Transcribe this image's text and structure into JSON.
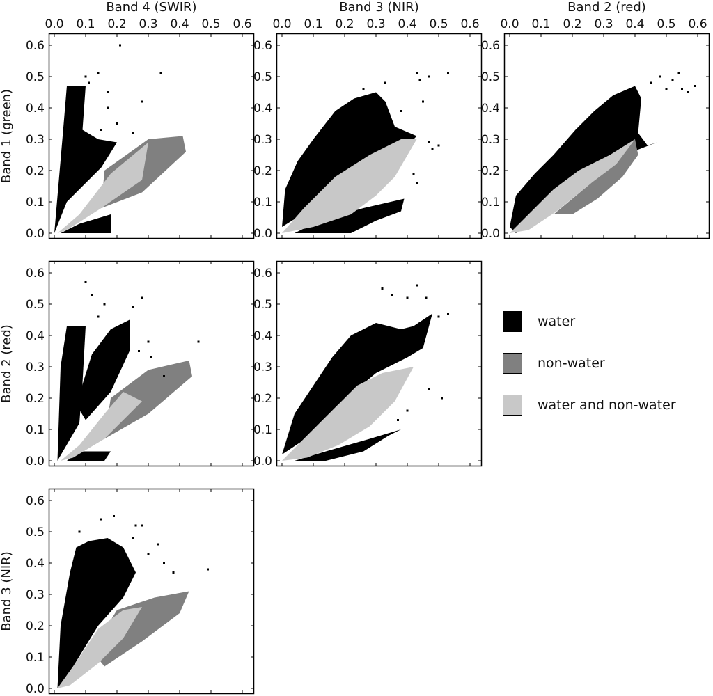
{
  "chart_data": {
    "type": "scatter",
    "description_style": "binned 2D scatter-matrix (density pixels), 3 classes",
    "axis_range": [
      0.0,
      0.62
    ],
    "ticks": [
      0.0,
      0.1,
      0.2,
      0.3,
      0.4,
      0.5,
      0.6
    ],
    "tick_labels": [
      "0.0",
      "0.1",
      "0.2",
      "0.3",
      "0.4",
      "0.5",
      "0.6"
    ],
    "column_titles": [
      "Band 4 (SWIR)",
      "Band 3 (NIR)",
      "Band 2 (red)"
    ],
    "row_titles": [
      "Band 1 (green)",
      "Band 2 (red)",
      "Band 3 (NIR)"
    ],
    "grid": false,
    "legend_position": "right",
    "legend": [
      {
        "name": "water",
        "color": "#000000"
      },
      {
        "name": "non-water",
        "color": "#808080"
      },
      {
        "name": "water and non-water",
        "color": "#c8c8c8"
      }
    ],
    "panels": [
      {
        "row": 0,
        "col": 0,
        "x_band": "Band 4 (SWIR)",
        "y_band": "Band 1 (green)",
        "water": [
          [
            [
              0.0,
              0.0
            ],
            [
              0.03,
              0.35
            ],
            [
              0.04,
              0.47
            ],
            [
              0.1,
              0.47
            ],
            [
              0.09,
              0.33
            ],
            [
              0.14,
              0.3
            ],
            [
              0.2,
              0.29
            ],
            [
              0.15,
              0.21
            ],
            [
              0.04,
              0.1
            ]
          ],
          [
            [
              0.02,
              0.0
            ],
            [
              0.18,
              0.0
            ],
            [
              0.18,
              0.06
            ],
            [
              0.08,
              0.03
            ]
          ]
        ],
        "nonwater": [
          [
            [
              0.16,
              0.2
            ],
            [
              0.3,
              0.3
            ],
            [
              0.41,
              0.31
            ],
            [
              0.42,
              0.26
            ],
            [
              0.28,
              0.13
            ],
            [
              0.15,
              0.08
            ]
          ]
        ],
        "overlap": [
          [
            [
              0.01,
              0.0
            ],
            [
              0.08,
              0.06
            ],
            [
              0.18,
              0.19
            ],
            [
              0.3,
              0.29
            ],
            [
              0.28,
              0.17
            ],
            [
              0.15,
              0.08
            ],
            [
              0.04,
              0.01
            ]
          ]
        ],
        "scatter_points": [
          [
            0.1,
            0.5
          ],
          [
            0.14,
            0.51
          ],
          [
            0.17,
            0.45
          ],
          [
            0.21,
            0.6
          ],
          [
            0.17,
            0.4
          ],
          [
            0.28,
            0.42
          ],
          [
            0.2,
            0.35
          ],
          [
            0.34,
            0.51
          ],
          [
            0.25,
            0.32
          ],
          [
            0.09,
            0.38
          ],
          [
            0.11,
            0.48
          ],
          [
            0.15,
            0.33
          ]
        ]
      },
      {
        "row": 0,
        "col": 1,
        "x_band": "Band 3 (NIR)",
        "y_band": "Band 1 (green)",
        "water": [
          [
            [
              0.0,
              0.02
            ],
            [
              0.01,
              0.14
            ],
            [
              0.05,
              0.23
            ],
            [
              0.1,
              0.3
            ],
            [
              0.17,
              0.39
            ],
            [
              0.23,
              0.43
            ],
            [
              0.3,
              0.45
            ],
            [
              0.33,
              0.42
            ],
            [
              0.36,
              0.34
            ],
            [
              0.43,
              0.31
            ],
            [
              0.4,
              0.28
            ],
            [
              0.33,
              0.23
            ],
            [
              0.2,
              0.18
            ],
            [
              0.08,
              0.07
            ]
          ],
          [
            [
              0.04,
              0.0
            ],
            [
              0.22,
              0.0
            ],
            [
              0.3,
              0.04
            ],
            [
              0.38,
              0.07
            ],
            [
              0.39,
              0.11
            ],
            [
              0.26,
              0.08
            ],
            [
              0.12,
              0.04
            ]
          ]
        ],
        "nonwater": [],
        "overlap": [
          [
            [
              0.0,
              0.0
            ],
            [
              0.07,
              0.08
            ],
            [
              0.17,
              0.18
            ],
            [
              0.28,
              0.25
            ],
            [
              0.38,
              0.3
            ],
            [
              0.43,
              0.3
            ],
            [
              0.36,
              0.18
            ],
            [
              0.3,
              0.12
            ],
            [
              0.22,
              0.06
            ],
            [
              0.1,
              0.02
            ]
          ]
        ],
        "scatter_points": [
          [
            0.43,
            0.51
          ],
          [
            0.44,
            0.49
          ],
          [
            0.47,
            0.5
          ],
          [
            0.53,
            0.51
          ],
          [
            0.47,
            0.29
          ],
          [
            0.5,
            0.28
          ],
          [
            0.42,
            0.19
          ],
          [
            0.38,
            0.39
          ],
          [
            0.33,
            0.48
          ],
          [
            0.45,
            0.42
          ],
          [
            0.26,
            0.46
          ],
          [
            0.43,
            0.16
          ],
          [
            0.48,
            0.27
          ]
        ]
      },
      {
        "row": 0,
        "col": 2,
        "x_band": "Band 2 (red)",
        "y_band": "Band 1 (green)",
        "water": [
          [
            [
              0.0,
              0.02
            ],
            [
              0.02,
              0.12
            ],
            [
              0.08,
              0.19
            ],
            [
              0.14,
              0.25
            ],
            [
              0.21,
              0.33
            ],
            [
              0.27,
              0.39
            ],
            [
              0.33,
              0.44
            ],
            [
              0.4,
              0.47
            ],
            [
              0.42,
              0.43
            ],
            [
              0.41,
              0.32
            ],
            [
              0.44,
              0.28
            ],
            [
              0.47,
              0.29
            ],
            [
              0.34,
              0.24
            ],
            [
              0.22,
              0.17
            ],
            [
              0.1,
              0.08
            ],
            [
              0.02,
              0.0
            ]
          ]
        ],
        "nonwater": [
          [
            [
              0.14,
              0.06
            ],
            [
              0.26,
              0.16
            ],
            [
              0.34,
              0.24
            ],
            [
              0.4,
              0.3
            ],
            [
              0.41,
              0.25
            ],
            [
              0.36,
              0.18
            ],
            [
              0.28,
              0.11
            ],
            [
              0.2,
              0.06
            ]
          ]
        ],
        "overlap": [
          [
            [
              0.0,
              0.0
            ],
            [
              0.06,
              0.06
            ],
            [
              0.14,
              0.14
            ],
            [
              0.22,
              0.2
            ],
            [
              0.32,
              0.25
            ],
            [
              0.4,
              0.3
            ],
            [
              0.34,
              0.22
            ],
            [
              0.26,
              0.16
            ],
            [
              0.15,
              0.07
            ],
            [
              0.06,
              0.01
            ]
          ]
        ],
        "scatter_points": [
          [
            0.48,
            0.5
          ],
          [
            0.52,
            0.49
          ],
          [
            0.55,
            0.46
          ],
          [
            0.57,
            0.45
          ],
          [
            0.5,
            0.46
          ],
          [
            0.54,
            0.51
          ],
          [
            0.45,
            0.48
          ],
          [
            0.59,
            0.47
          ]
        ]
      },
      {
        "row": 1,
        "col": 0,
        "x_band": "Band 4 (SWIR)",
        "y_band": "Band 2 (red)",
        "water": [
          [
            [
              0.01,
              0.0
            ],
            [
              0.02,
              0.3
            ],
            [
              0.04,
              0.43
            ],
            [
              0.1,
              0.43
            ],
            [
              0.09,
              0.25
            ],
            [
              0.08,
              0.12
            ]
          ],
          [
            [
              0.07,
              0.18
            ],
            [
              0.12,
              0.34
            ],
            [
              0.18,
              0.42
            ],
            [
              0.24,
              0.45
            ],
            [
              0.24,
              0.35
            ],
            [
              0.18,
              0.22
            ],
            [
              0.1,
              0.13
            ]
          ],
          [
            [
              0.04,
              0.0
            ],
            [
              0.16,
              0.0
            ],
            [
              0.18,
              0.03
            ],
            [
              0.08,
              0.03
            ]
          ]
        ],
        "nonwater": [
          [
            [
              0.18,
              0.2
            ],
            [
              0.3,
              0.29
            ],
            [
              0.43,
              0.32
            ],
            [
              0.44,
              0.27
            ],
            [
              0.3,
              0.15
            ],
            [
              0.16,
              0.07
            ]
          ]
        ],
        "overlap": [
          [
            [
              0.02,
              0.0
            ],
            [
              0.08,
              0.05
            ],
            [
              0.16,
              0.15
            ],
            [
              0.22,
              0.22
            ],
            [
              0.28,
              0.19
            ],
            [
              0.16,
              0.07
            ],
            [
              0.06,
              0.01
            ]
          ]
        ],
        "scatter_points": [
          [
            0.1,
            0.57
          ],
          [
            0.12,
            0.53
          ],
          [
            0.16,
            0.5
          ],
          [
            0.22,
            0.43
          ],
          [
            0.27,
            0.35
          ],
          [
            0.31,
            0.33
          ],
          [
            0.35,
            0.27
          ],
          [
            0.28,
            0.52
          ],
          [
            0.3,
            0.38
          ],
          [
            0.14,
            0.46
          ],
          [
            0.46,
            0.38
          ],
          [
            0.25,
            0.49
          ]
        ]
      },
      {
        "row": 1,
        "col": 1,
        "x_band": "Band 3 (NIR)",
        "y_band": "Band 2 (red)",
        "water": [
          [
            [
              0.0,
              0.02
            ],
            [
              0.04,
              0.15
            ],
            [
              0.1,
              0.24
            ],
            [
              0.16,
              0.33
            ],
            [
              0.22,
              0.4
            ],
            [
              0.3,
              0.44
            ],
            [
              0.38,
              0.42
            ],
            [
              0.42,
              0.43
            ],
            [
              0.48,
              0.47
            ],
            [
              0.45,
              0.36
            ],
            [
              0.4,
              0.33
            ],
            [
              0.3,
              0.28
            ],
            [
              0.18,
              0.18
            ],
            [
              0.06,
              0.06
            ]
          ],
          [
            [
              0.04,
              0.0
            ],
            [
              0.14,
              0.0
            ],
            [
              0.26,
              0.03
            ],
            [
              0.34,
              0.08
            ],
            [
              0.38,
              0.1
            ],
            [
              0.28,
              0.07
            ],
            [
              0.14,
              0.03
            ]
          ]
        ],
        "nonwater": [],
        "overlap": [
          [
            [
              0.0,
              0.0
            ],
            [
              0.08,
              0.08
            ],
            [
              0.16,
              0.16
            ],
            [
              0.24,
              0.24
            ],
            [
              0.32,
              0.28
            ],
            [
              0.42,
              0.3
            ],
            [
              0.36,
              0.19
            ],
            [
              0.28,
              0.11
            ],
            [
              0.18,
              0.05
            ],
            [
              0.08,
              0.01
            ]
          ]
        ],
        "scatter_points": [
          [
            0.32,
            0.55
          ],
          [
            0.35,
            0.53
          ],
          [
            0.4,
            0.52
          ],
          [
            0.43,
            0.56
          ],
          [
            0.46,
            0.52
          ],
          [
            0.5,
            0.46
          ],
          [
            0.53,
            0.47
          ],
          [
            0.44,
            0.44
          ],
          [
            0.38,
            0.35
          ],
          [
            0.47,
            0.23
          ],
          [
            0.51,
            0.2
          ],
          [
            0.37,
            0.13
          ],
          [
            0.4,
            0.16
          ],
          [
            0.23,
            0.37
          ]
        ]
      },
      {
        "row": 2,
        "col": 0,
        "x_band": "Band 4 (SWIR)",
        "y_band": "Band 3 (NIR)",
        "water": [
          [
            [
              0.01,
              0.0
            ],
            [
              0.02,
              0.2
            ],
            [
              0.05,
              0.37
            ],
            [
              0.07,
              0.45
            ],
            [
              0.11,
              0.47
            ],
            [
              0.17,
              0.48
            ],
            [
              0.22,
              0.45
            ],
            [
              0.26,
              0.37
            ],
            [
              0.22,
              0.29
            ],
            [
              0.14,
              0.2
            ],
            [
              0.06,
              0.07
            ]
          ]
        ],
        "nonwater": [
          [
            [
              0.12,
              0.12
            ],
            [
              0.2,
              0.25
            ],
            [
              0.32,
              0.29
            ],
            [
              0.43,
              0.31
            ],
            [
              0.4,
              0.24
            ],
            [
              0.28,
              0.15
            ],
            [
              0.16,
              0.07
            ]
          ]
        ],
        "overlap": [
          [
            [
              0.01,
              0.0
            ],
            [
              0.06,
              0.07
            ],
            [
              0.14,
              0.19
            ],
            [
              0.22,
              0.25
            ],
            [
              0.28,
              0.26
            ],
            [
              0.22,
              0.16
            ],
            [
              0.14,
              0.08
            ],
            [
              0.05,
              0.01
            ]
          ]
        ],
        "scatter_points": [
          [
            0.15,
            0.54
          ],
          [
            0.19,
            0.55
          ],
          [
            0.26,
            0.52
          ],
          [
            0.28,
            0.52
          ],
          [
            0.33,
            0.46
          ],
          [
            0.35,
            0.4
          ],
          [
            0.3,
            0.43
          ],
          [
            0.25,
            0.48
          ],
          [
            0.08,
            0.5
          ],
          [
            0.2,
            0.42
          ],
          [
            0.49,
            0.38
          ],
          [
            0.38,
            0.37
          ]
        ]
      }
    ]
  }
}
